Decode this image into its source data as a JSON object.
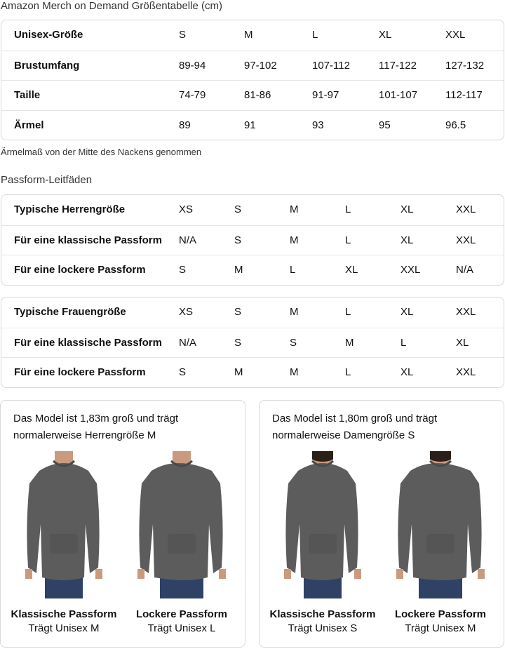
{
  "title": "Amazon Merch on Demand Größentabelle (cm)",
  "size_table": {
    "rows": [
      [
        "Unisex-Größe",
        "S",
        "M",
        "L",
        "XL",
        "XXL"
      ],
      [
        "Brustumfang",
        "89-94",
        "97-102",
        "107-112",
        "117-122",
        "127-132"
      ],
      [
        "Taille",
        "74-79",
        "81-86",
        "91-97",
        "101-107",
        "112-117"
      ],
      [
        "Ärmel",
        "89",
        "91",
        "93",
        "95",
        "96.5"
      ]
    ]
  },
  "note": "Ärmelmaß von der Mitte des Nackens genommen",
  "fit_title": "Passform-Leitfäden",
  "men_table": {
    "rows": [
      [
        "Typische Herrengröße",
        "XS",
        "S",
        "M",
        "L",
        "XL",
        "XXL"
      ],
      [
        "Für eine klassische Passform",
        "N/A",
        "S",
        "M",
        "L",
        "XL",
        "XXL"
      ],
      [
        "Für eine lockere Passform",
        "S",
        "M",
        "L",
        "XL",
        "XXL",
        "N/A"
      ]
    ]
  },
  "women_table": {
    "rows": [
      [
        "Typische Frauengröße",
        "XS",
        "S",
        "M",
        "L",
        "XL",
        "XXL"
      ],
      [
        "Für eine klassische Passform",
        "N/A",
        "S",
        "S",
        "M",
        "L",
        "XL"
      ],
      [
        "Für eine lockere Passform",
        "S",
        "M",
        "M",
        "L",
        "XL",
        "XXL"
      ]
    ]
  },
  "cards": [
    {
      "text": "Das Model ist 1,83m groß und trägt normalerweise Herrengröße M",
      "figs": [
        {
          "title": "Klassische Passform",
          "sub": "Trägt Unisex M"
        },
        {
          "title": "Lockere Passform",
          "sub": "Trägt Unisex L"
        }
      ]
    },
    {
      "text": "Das Model ist 1,80m groß und trägt normalerweise Damengröße S",
      "figs": [
        {
          "title": "Klassische Passform",
          "sub": "Trägt Unisex S"
        },
        {
          "title": "Lockere Passform",
          "sub": "Trägt Unisex M"
        }
      ]
    }
  ],
  "colors": {
    "hoodie": "#5c5c5c",
    "jeans": "#2f4266",
    "skin": "#c99a7e",
    "border": "#d5d9d9"
  }
}
